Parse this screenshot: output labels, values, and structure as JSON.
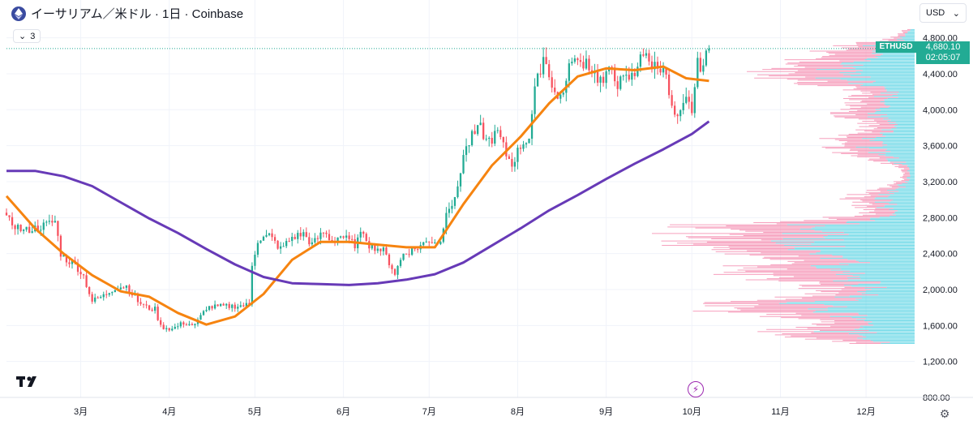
{
  "header": {
    "title": "イーサリアム／米ドル · 1日 · Coinbase",
    "indicator_count": "3",
    "currency": "USD"
  },
  "price_tag": {
    "symbol": "ETHUSD",
    "price": "4,680.10",
    "countdown": "02:05:07"
  },
  "icons": {
    "symbol": "ethereum-icon",
    "bolt": "bolt-icon",
    "settings": "gear-icon",
    "logo": "tradingview-logo"
  },
  "chart_data": {
    "type": "candlestick",
    "title": "イーサリアム／米ドル · 1日 · Coinbase",
    "ylim": [
      800,
      4950
    ],
    "y_ticks": [
      {
        "v": 800,
        "label": "800.00"
      },
      {
        "v": 1200,
        "label": "1,200.00"
      },
      {
        "v": 1600,
        "label": "1,600.00"
      },
      {
        "v": 2000,
        "label": "2,000.00"
      },
      {
        "v": 2400,
        "label": "2,400.00"
      },
      {
        "v": 2800,
        "label": "2,800.00"
      },
      {
        "v": 3200,
        "label": "3,200.00"
      },
      {
        "v": 3600,
        "label": "3,600.00"
      },
      {
        "v": 4000,
        "label": "4,000.00"
      },
      {
        "v": 4400,
        "label": "4,400.00"
      },
      {
        "v": 4800,
        "label": "4,800.00"
      }
    ],
    "x_months": [
      {
        "label": "3月",
        "day": 26
      },
      {
        "label": "4月",
        "day": 57
      },
      {
        "label": "5月",
        "day": 87
      },
      {
        "label": "6月",
        "day": 118
      },
      {
        "label": "7月",
        "day": 148
      },
      {
        "label": "8月",
        "day": 179
      },
      {
        "label": "9月",
        "day": 210
      },
      {
        "label": "10月",
        "day": 240
      },
      {
        "label": "11月",
        "day": 271
      },
      {
        "label": "12月",
        "day": 301
      }
    ],
    "xlim_days": [
      0,
      318
    ],
    "last_price": 4680.1,
    "close_anchors": [
      [
        0,
        2780
      ],
      [
        6,
        2650
      ],
      [
        12,
        2700
      ],
      [
        17,
        2760
      ],
      [
        19,
        2400
      ],
      [
        21,
        2330
      ],
      [
        24,
        2280
      ],
      [
        27,
        2150
      ],
      [
        30,
        1870
      ],
      [
        34,
        1930
      ],
      [
        38,
        2020
      ],
      [
        42,
        2040
      ],
      [
        46,
        1870
      ],
      [
        49,
        1800
      ],
      [
        52,
        1780
      ],
      [
        54,
        1590
      ],
      [
        58,
        1560
      ],
      [
        62,
        1630
      ],
      [
        66,
        1600
      ],
      [
        70,
        1800
      ],
      [
        75,
        1810
      ],
      [
        82,
        1820
      ],
      [
        85,
        1830
      ],
      [
        86,
        2280
      ],
      [
        88,
        2550
      ],
      [
        92,
        2600
      ],
      [
        96,
        2450
      ],
      [
        100,
        2580
      ],
      [
        104,
        2620
      ],
      [
        107,
        2500
      ],
      [
        111,
        2640
      ],
      [
        114,
        2540
      ],
      [
        117,
        2600
      ],
      [
        122,
        2500
      ],
      [
        125,
        2650
      ],
      [
        127,
        2500
      ],
      [
        132,
        2430
      ],
      [
        136,
        2180
      ],
      [
        139,
        2400
      ],
      [
        143,
        2450
      ],
      [
        148,
        2550
      ],
      [
        152,
        2520
      ],
      [
        154,
        2900
      ],
      [
        157,
        2980
      ],
      [
        160,
        3500
      ],
      [
        163,
        3700
      ],
      [
        166,
        3800
      ],
      [
        168,
        3650
      ],
      [
        170,
        3680
      ],
      [
        172,
        3750
      ],
      [
        175,
        3500
      ],
      [
        177,
        3400
      ],
      [
        180,
        3600
      ],
      [
        183,
        3700
      ],
      [
        185,
        4200
      ],
      [
        188,
        4600
      ],
      [
        190,
        4400
      ],
      [
        193,
        4100
      ],
      [
        196,
        4300
      ],
      [
        198,
        4600
      ],
      [
        200,
        4500
      ],
      [
        203,
        4550
      ],
      [
        206,
        4390
      ],
      [
        209,
        4300
      ],
      [
        212,
        4480
      ],
      [
        214,
        4290
      ],
      [
        217,
        4340
      ],
      [
        220,
        4380
      ],
      [
        222,
        4660
      ],
      [
        225,
        4520
      ],
      [
        228,
        4480
      ],
      [
        230,
        4500
      ],
      [
        233,
        4000
      ],
      [
        235,
        3870
      ],
      [
        238,
        4100
      ],
      [
        240,
        4000
      ],
      [
        242,
        4500
      ],
      [
        244,
        4500
      ],
      [
        246,
        4680.1
      ]
    ],
    "series": [
      {
        "name": "MA short",
        "color": "#f68410",
        "points": [
          [
            0,
            3040
          ],
          [
            10,
            2680
          ],
          [
            20,
            2400
          ],
          [
            30,
            2160
          ],
          [
            40,
            1980
          ],
          [
            50,
            1920
          ],
          [
            60,
            1740
          ],
          [
            70,
            1610
          ],
          [
            80,
            1700
          ],
          [
            90,
            1950
          ],
          [
            100,
            2330
          ],
          [
            110,
            2530
          ],
          [
            120,
            2530
          ],
          [
            130,
            2500
          ],
          [
            140,
            2470
          ],
          [
            150,
            2470
          ],
          [
            160,
            2950
          ],
          [
            170,
            3380
          ],
          [
            180,
            3700
          ],
          [
            190,
            4070
          ],
          [
            200,
            4370
          ],
          [
            210,
            4460
          ],
          [
            220,
            4440
          ],
          [
            230,
            4480
          ],
          [
            238,
            4350
          ],
          [
            246,
            4320
          ]
        ]
      },
      {
        "name": "MA long",
        "color": "#673ab7",
        "points": [
          [
            0,
            3320
          ],
          [
            10,
            3320
          ],
          [
            20,
            3260
          ],
          [
            30,
            3150
          ],
          [
            40,
            2970
          ],
          [
            50,
            2790
          ],
          [
            60,
            2630
          ],
          [
            70,
            2450
          ],
          [
            80,
            2280
          ],
          [
            90,
            2140
          ],
          [
            100,
            2070
          ],
          [
            110,
            2060
          ],
          [
            120,
            2050
          ],
          [
            130,
            2070
          ],
          [
            140,
            2110
          ],
          [
            150,
            2170
          ],
          [
            160,
            2300
          ],
          [
            170,
            2490
          ],
          [
            180,
            2680
          ],
          [
            190,
            2880
          ],
          [
            200,
            3050
          ],
          [
            210,
            3230
          ],
          [
            220,
            3400
          ],
          [
            230,
            3560
          ],
          [
            240,
            3730
          ],
          [
            246,
            3870
          ]
        ]
      }
    ],
    "volume_profile": "horizontal histogram on right edge, pink (sell) and cyan (buy)"
  }
}
